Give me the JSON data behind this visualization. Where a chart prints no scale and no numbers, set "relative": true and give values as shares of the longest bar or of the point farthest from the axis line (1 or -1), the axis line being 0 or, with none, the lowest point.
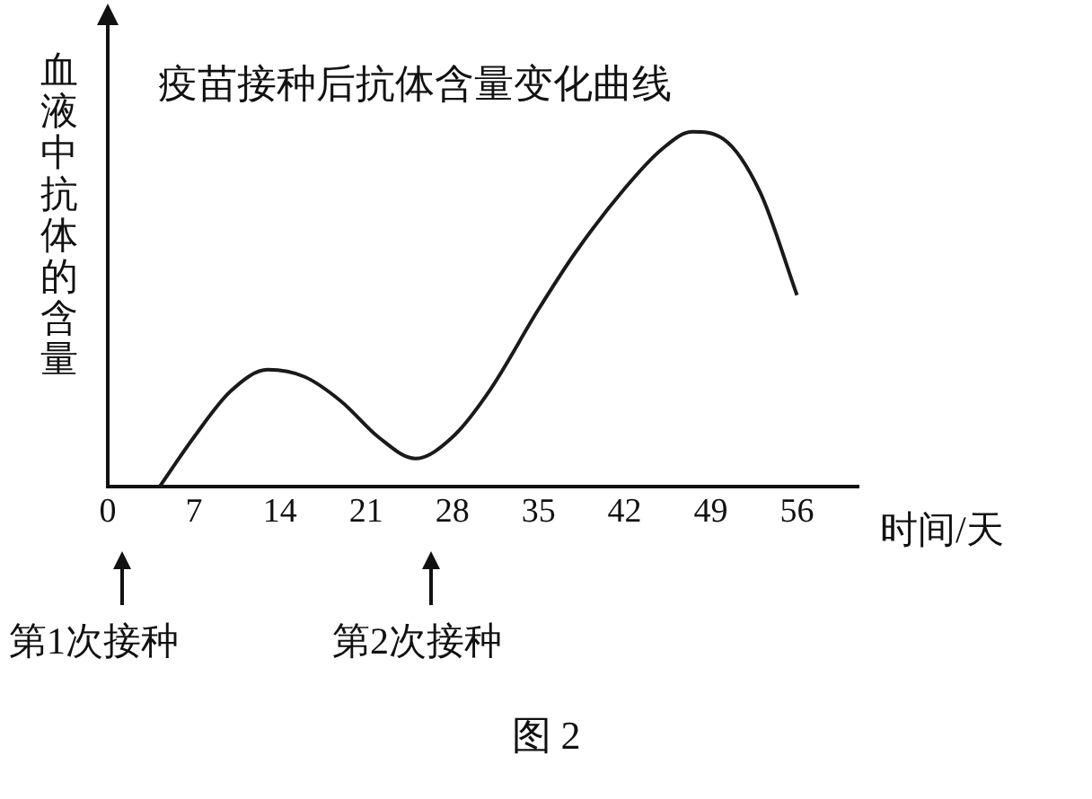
{
  "chart_data": {
    "type": "line",
    "title": "疫苗接种后抗体含量变化曲线",
    "xlabel": "时间/天",
    "ylabel": "血液中抗体的含量",
    "relative": true,
    "color": "#1a1a1a",
    "marker": "none",
    "grid": false,
    "legend": false,
    "x": [
      4.2,
      7,
      10,
      13,
      16,
      19,
      22,
      25,
      28,
      31,
      35,
      38,
      42,
      45,
      47.5,
      50,
      53,
      56
    ],
    "values": [
      0,
      0.14,
      0.27,
      0.33,
      0.31,
      0.24,
      0.14,
      0.08,
      0.14,
      0.27,
      0.5,
      0.66,
      0.84,
      0.95,
      1,
      0.98,
      0.83,
      0.54
    ],
    "xlim": [
      0,
      61
    ],
    "xticks": [
      0,
      7,
      14,
      21,
      28,
      35,
      42,
      49,
      56
    ],
    "annotations": [
      "第1次接种",
      "第2次接种",
      "图 2"
    ]
  }
}
